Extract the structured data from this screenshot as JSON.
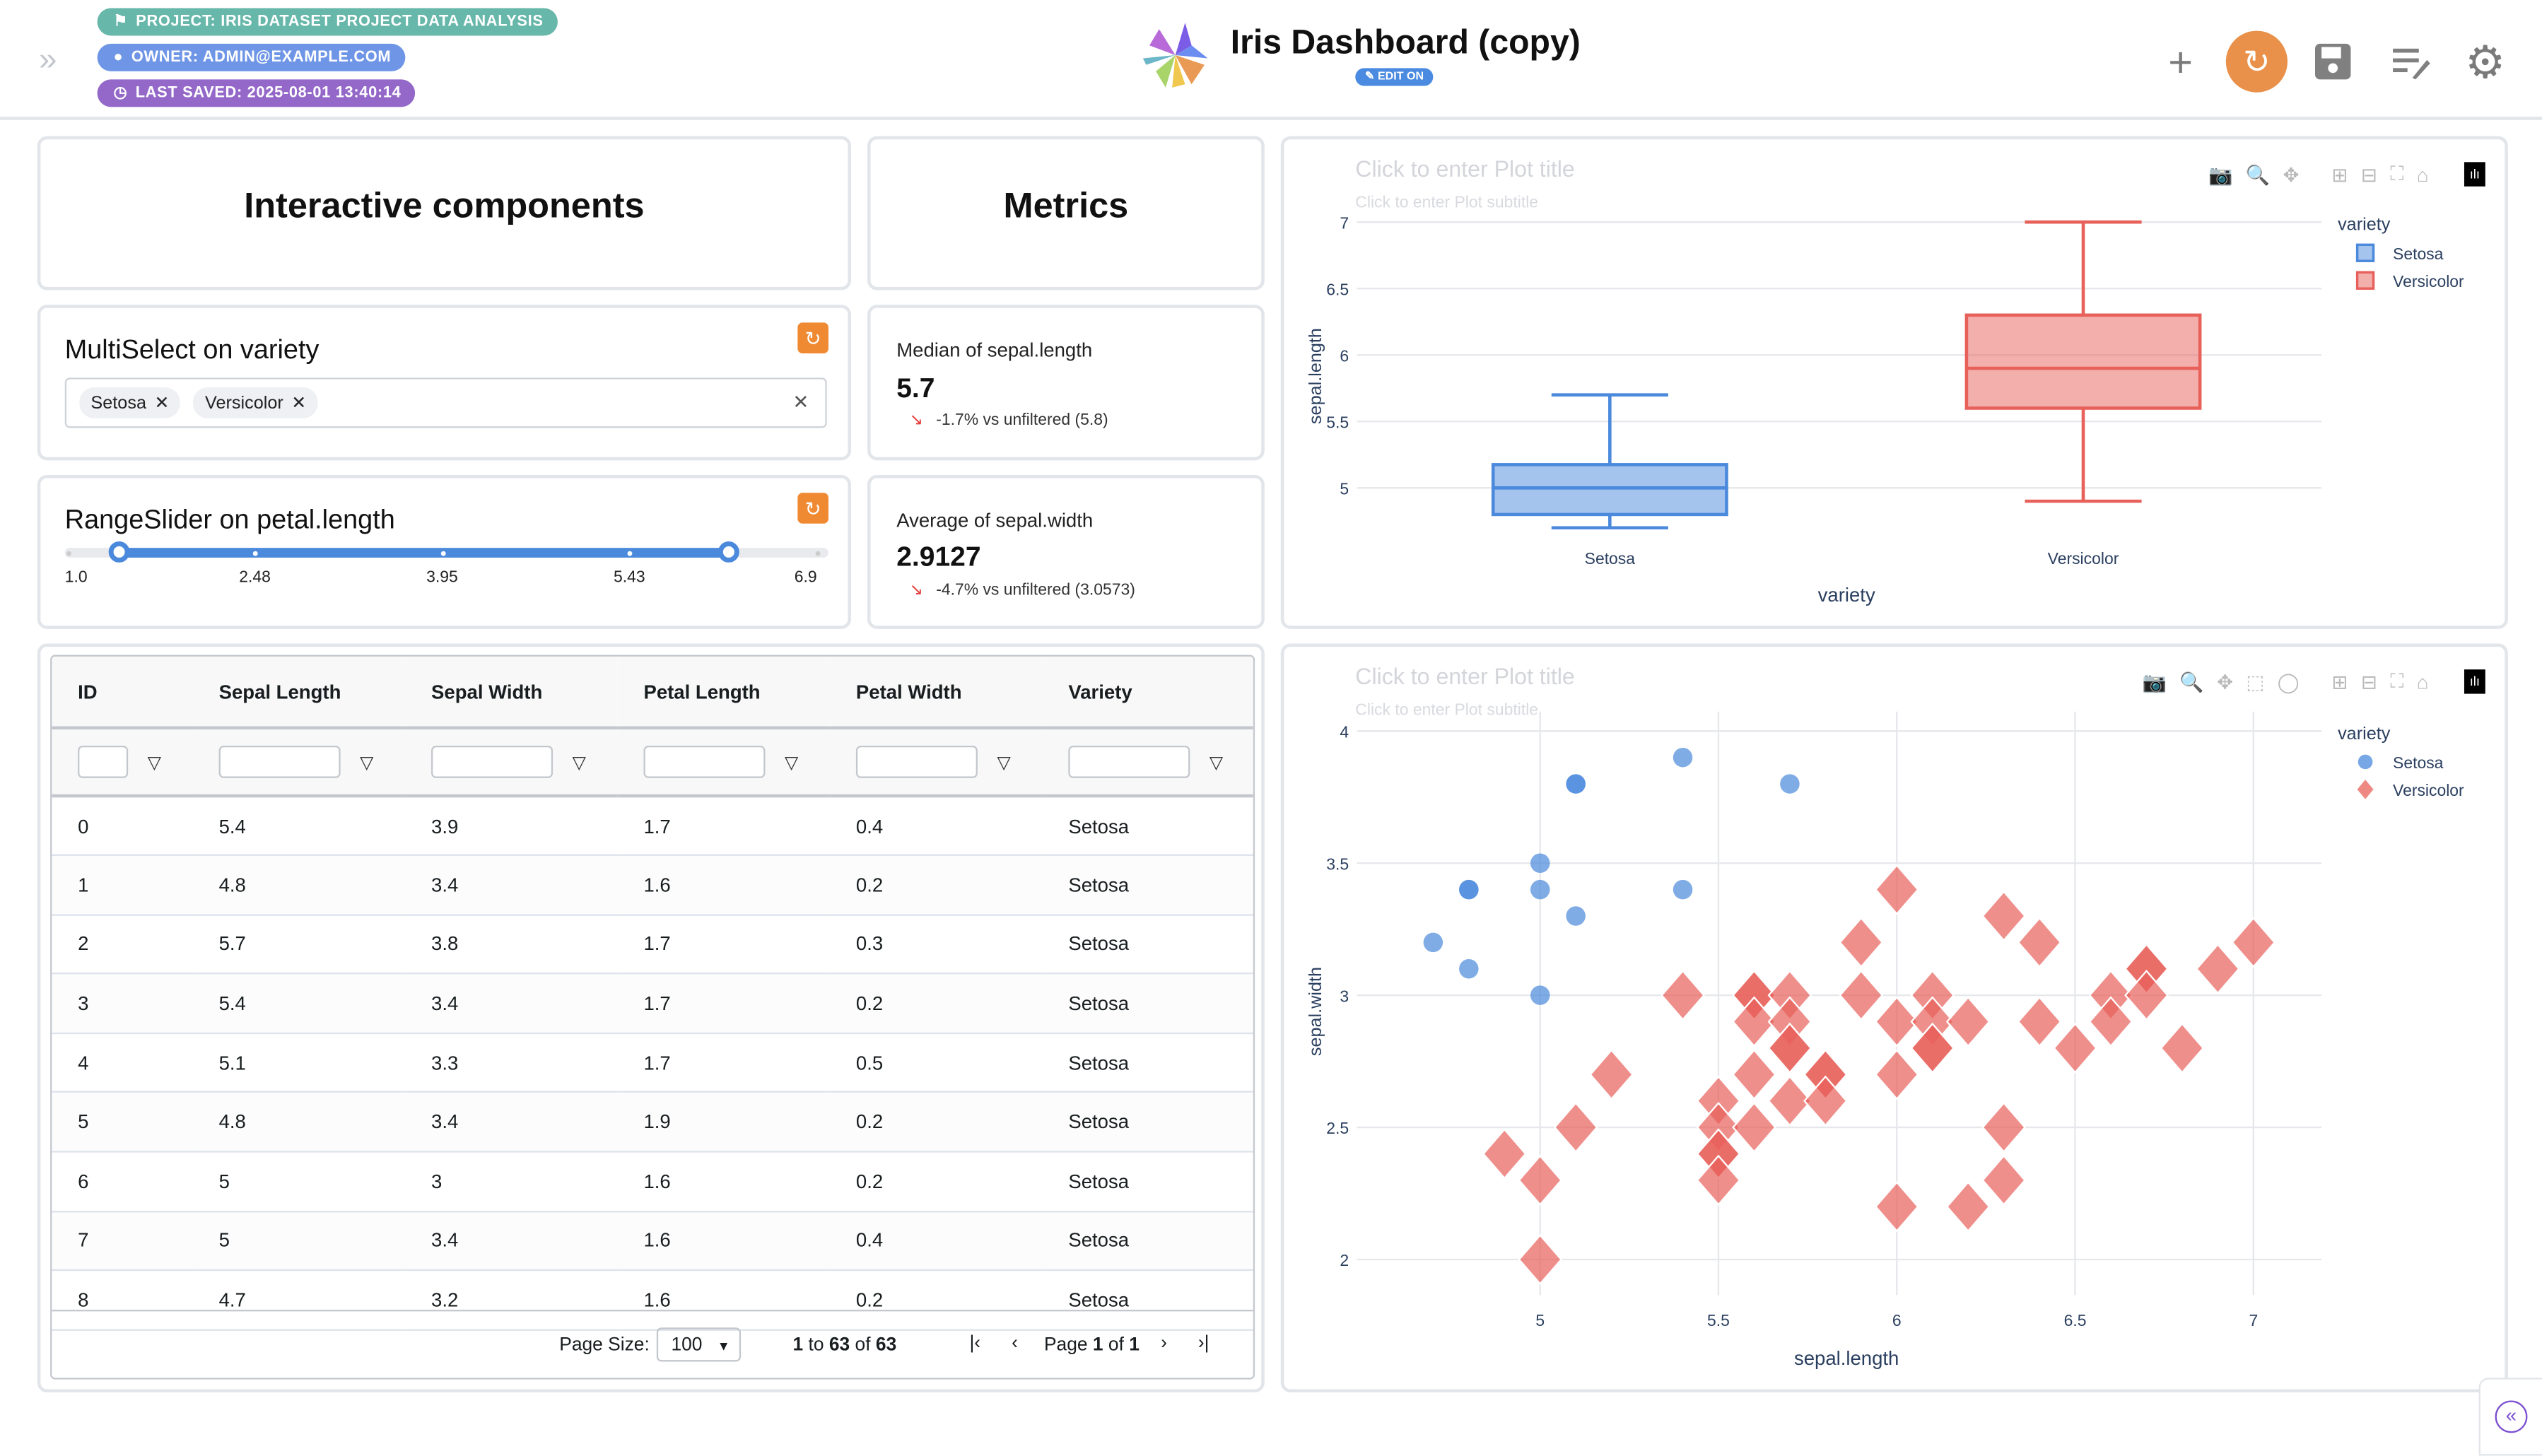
{
  "header": {
    "project_badge": "PROJECT: IRIS DATASET PROJECT DATA ANALYSIS",
    "owner_badge": "OWNER: ADMIN@EXAMPLE.COM",
    "saved_badge": "LAST SAVED: 2025-08-01 13:40:14",
    "title": "Iris Dashboard (copy)",
    "edit_badge": "EDIT ON",
    "colors": {
      "project": "#67b7aa",
      "owner": "#6f96e6",
      "saved": "#9468c8",
      "edit": "#4a8ae0",
      "reset": "#e9914a"
    }
  },
  "sections": {
    "interactive": "Interactive components",
    "metrics": "Metrics"
  },
  "multiselect": {
    "title": "MultiSelect on variety",
    "chips": [
      "Setosa",
      "Versicolor"
    ]
  },
  "rangeslider": {
    "title": "RangeSlider on petal.length",
    "min": 1.0,
    "max": 6.9,
    "low": 1.4,
    "high": 6.2,
    "ticks": [
      "1.0",
      "2.48",
      "3.95",
      "5.43",
      "6.9"
    ]
  },
  "metrics": [
    {
      "label": "Median of sepal.length",
      "value": "5.7",
      "delta": "-1.7% vs unfiltered (5.8)"
    },
    {
      "label": "Average of sepal.width",
      "value": "2.9127",
      "delta": "-4.7% vs unfiltered (3.0573)"
    }
  ],
  "table": {
    "columns": [
      "ID",
      "Sepal Length",
      "Sepal Width",
      "Petal Length",
      "Petal Width",
      "Variety"
    ],
    "rows": [
      [
        "0",
        "5.4",
        "3.9",
        "1.7",
        "0.4",
        "Setosa"
      ],
      [
        "1",
        "4.8",
        "3.4",
        "1.6",
        "0.2",
        "Setosa"
      ],
      [
        "2",
        "5.7",
        "3.8",
        "1.7",
        "0.3",
        "Setosa"
      ],
      [
        "3",
        "5.4",
        "3.4",
        "1.7",
        "0.2",
        "Setosa"
      ],
      [
        "4",
        "5.1",
        "3.3",
        "1.7",
        "0.5",
        "Setosa"
      ],
      [
        "5",
        "4.8",
        "3.4",
        "1.9",
        "0.2",
        "Setosa"
      ],
      [
        "6",
        "5",
        "3",
        "1.6",
        "0.2",
        "Setosa"
      ],
      [
        "7",
        "5",
        "3.4",
        "1.6",
        "0.4",
        "Setosa"
      ],
      [
        "8",
        "4.7",
        "3.2",
        "1.6",
        "0.2",
        "Setosa"
      ]
    ],
    "page_size_label": "Page Size:",
    "page_size": "100",
    "range_text": {
      "from": "1",
      "to_word": "to",
      "to": "63",
      "of_word": "of",
      "total": "63"
    },
    "page_text": {
      "page_word": "Page",
      "page": "1",
      "of_word": "of",
      "pages": "1"
    }
  },
  "plot_common": {
    "title_placeholder": "Click to enter Plot title",
    "subtitle_placeholder": "Click to enter Plot subtitle"
  },
  "chart_data": [
    {
      "type": "box",
      "xlabel": "variety",
      "ylabel": "sepal.length",
      "ylim": [
        4.6,
        7.05
      ],
      "yticks": [
        5,
        5.5,
        6,
        6.5,
        7
      ],
      "legend_title": "variety",
      "legend_position": "right",
      "grid": true,
      "categories": [
        "Setosa",
        "Versicolor"
      ],
      "series": [
        {
          "name": "Setosa",
          "color": "#4a89dc",
          "min": 4.7,
          "q1": 4.8,
          "median": 5.0,
          "q3": 5.175,
          "max": 5.7
        },
        {
          "name": "Versicolor",
          "color": "#e8605a",
          "min": 4.9,
          "q1": 5.6,
          "median": 5.9,
          "q3": 6.3,
          "max": 7.0
        }
      ]
    },
    {
      "type": "scatter",
      "xlabel": "sepal.length",
      "ylabel": "sepal.width",
      "xlim": [
        4.6,
        7.2
      ],
      "ylim": [
        1.85,
        4.05
      ],
      "xticks": [
        5,
        5.5,
        6,
        6.5,
        7
      ],
      "yticks": [
        2,
        2.5,
        3,
        3.5,
        4
      ],
      "legend_title": "variety",
      "legend_position": "right",
      "grid": true,
      "series": [
        {
          "name": "Setosa",
          "color": "#4a89dc",
          "marker": "circle",
          "points": [
            [
              5.4,
              3.9
            ],
            [
              5.1,
              3.8
            ],
            [
              5.1,
              3.8
            ],
            [
              5.7,
              3.8
            ],
            [
              5.0,
              3.5
            ],
            [
              4.8,
              3.4
            ],
            [
              4.8,
              3.4
            ],
            [
              5.0,
              3.4
            ],
            [
              5.4,
              3.4
            ],
            [
              5.1,
              3.3
            ],
            [
              4.7,
              3.2
            ],
            [
              4.8,
              3.1
            ],
            [
              5.0,
              3.0
            ]
          ]
        },
        {
          "name": "Versicolor",
          "color": "#e8605a",
          "marker": "diamond",
          "points": [
            [
              6.0,
              3.4
            ],
            [
              6.3,
              3.3
            ],
            [
              5.9,
              3.2
            ],
            [
              6.4,
              3.2
            ],
            [
              7.0,
              3.2
            ],
            [
              6.9,
              3.1
            ],
            [
              6.7,
              3.1
            ],
            [
              6.7,
              3.1
            ],
            [
              5.4,
              3.0
            ],
            [
              5.6,
              3.0
            ],
            [
              5.6,
              3.0
            ],
            [
              5.7,
              3.0
            ],
            [
              5.9,
              3.0
            ],
            [
              6.1,
              3.0
            ],
            [
              6.6,
              3.0
            ],
            [
              6.7,
              3.0
            ],
            [
              5.6,
              2.9
            ],
            [
              5.7,
              2.9
            ],
            [
              6.0,
              2.9
            ],
            [
              6.1,
              2.9
            ],
            [
              6.2,
              2.9
            ],
            [
              6.4,
              2.9
            ],
            [
              6.6,
              2.9
            ],
            [
              5.7,
              2.8
            ],
            [
              5.7,
              2.8
            ],
            [
              6.1,
              2.8
            ],
            [
              6.1,
              2.8
            ],
            [
              6.5,
              2.8
            ],
            [
              6.8,
              2.8
            ],
            [
              5.2,
              2.7
            ],
            [
              5.6,
              2.7
            ],
            [
              5.8,
              2.7
            ],
            [
              5.8,
              2.7
            ],
            [
              6.0,
              2.7
            ],
            [
              5.5,
              2.6
            ],
            [
              5.7,
              2.6
            ],
            [
              5.8,
              2.6
            ],
            [
              5.1,
              2.5
            ],
            [
              5.5,
              2.5
            ],
            [
              5.6,
              2.5
            ],
            [
              6.3,
              2.5
            ],
            [
              4.9,
              2.4
            ],
            [
              5.5,
              2.4
            ],
            [
              5.5,
              2.4
            ],
            [
              5.0,
              2.3
            ],
            [
              5.5,
              2.3
            ],
            [
              6.3,
              2.3
            ],
            [
              6.0,
              2.2
            ],
            [
              6.2,
              2.2
            ],
            [
              5.0,
              2.0
            ]
          ]
        }
      ]
    }
  ]
}
